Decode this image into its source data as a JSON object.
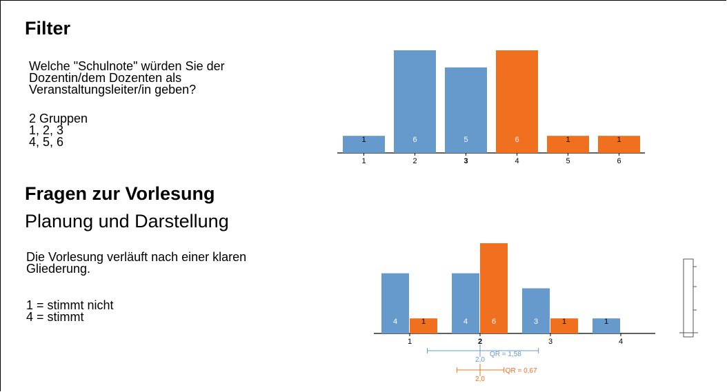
{
  "section1": {
    "title": "Filter",
    "question_lines": [
      "Welche \"Schulnote\" würden Sie der",
      "Dozentin/dem Dozenten als",
      "Veranstaltungsleiter/in geben?"
    ],
    "group_lines": [
      "2 Gruppen",
      "1, 2, 3",
      "4, 5, 6"
    ]
  },
  "section2": {
    "title": "Fragen zur Vorlesung",
    "subtitle": "Planung und Darstellung",
    "question_lines": [
      "Die Vorlesung verläuft nach einer klaren",
      "Gliederung."
    ],
    "scale_lines": [
      "1 = stimmt nicht",
      "4 = stimmt"
    ]
  },
  "colors": {
    "blue": "#6699cc",
    "orange": "#f07020",
    "axis": "#000000"
  },
  "chart_data": [
    {
      "type": "bar",
      "categories": [
        "1",
        "2",
        "3",
        "4",
        "5",
        "6"
      ],
      "highlight_category": "3",
      "values": [
        1,
        6,
        5,
        6,
        1,
        1
      ],
      "bar_colors": [
        "blue",
        "blue",
        "blue",
        "orange",
        "orange",
        "orange"
      ],
      "data_labels": [
        "1",
        "6",
        "5",
        "6",
        "1",
        "1"
      ],
      "ylim": [
        0,
        6
      ]
    },
    {
      "type": "bar",
      "categories": [
        "1",
        "2",
        "3",
        "4"
      ],
      "highlight_category": "2",
      "series": [
        {
          "color": "blue",
          "values": [
            4,
            4,
            3,
            1
          ],
          "labels": [
            "4",
            "4",
            "3",
            "1"
          ]
        },
        {
          "color": "orange",
          "values": [
            1,
            6,
            1,
            0
          ],
          "labels": [
            "1",
            "6",
            "1",
            ""
          ]
        }
      ],
      "ylim": [
        0,
        6
      ],
      "stats": [
        {
          "color": "blue",
          "median": 2.0,
          "median_label": "2,0",
          "q_low": 1.25,
          "q_high": 2.83,
          "qr_label": "QR = 1,58"
        },
        {
          "color": "orange",
          "median": 2.0,
          "median_label": "2,0",
          "q_low": 1.67,
          "q_high": 2.34,
          "qr_label": "QR = 0,67"
        }
      ]
    }
  ]
}
